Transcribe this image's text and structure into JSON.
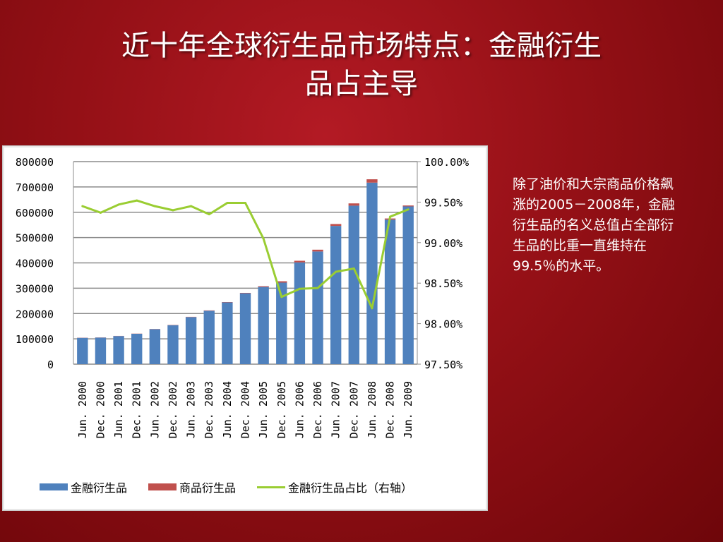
{
  "slide": {
    "title_line1": "近十年全球衍生品市场特点：金融衍生",
    "title_line2": "品占主导",
    "side_text": "除了油价和大宗商品价格飙涨的2005－2008年，金融衍生品的名义总值占全部衍生品的比重一直维持在99.5％的水平。"
  },
  "chart_data": {
    "type": "bar",
    "stacked": true,
    "categories": [
      "Jun. 2000",
      "Dec. 2000",
      "Jun. 2001",
      "Dec. 2001",
      "Jun. 2002",
      "Dec. 2002",
      "Jun. 2003",
      "Dec. 2003",
      "Jun. 2004",
      "Dec. 2004",
      "Jun. 2005",
      "Dec. 2005",
      "Jun. 2006",
      "Dec. 2006",
      "Jun. 2007",
      "Dec. 2007",
      "Jun. 2008",
      "Dec. 2008",
      "Jun. 2009"
    ],
    "series": [
      {
        "name": "金融衍生品",
        "type": "bar",
        "color": "#4f81bd",
        "axis": "left",
        "values": [
          104000,
          105000,
          111000,
          120000,
          138000,
          154000,
          186000,
          211000,
          244000,
          280000,
          305000,
          322000,
          402000,
          445000,
          546000,
          626000,
          717000,
          571000,
          623000
        ]
      },
      {
        "name": "商品衍生品",
        "type": "bar",
        "color": "#c0504d",
        "axis": "left",
        "values": [
          600,
          600,
          600,
          600,
          800,
          1000,
          1000,
          1400,
          1300,
          1600,
          2900,
          5400,
          6400,
          7100,
          7600,
          9000,
          13200,
          4400,
          3700
        ]
      },
      {
        "name": "金融衍生品占比（右轴）",
        "type": "line",
        "color": "#9acd32",
        "axis": "right",
        "values": [
          99.45,
          99.37,
          99.47,
          99.52,
          99.45,
          99.4,
          99.45,
          99.35,
          99.49,
          99.49,
          99.05,
          98.33,
          98.43,
          98.44,
          98.64,
          98.68,
          98.19,
          99.32,
          99.41
        ]
      }
    ],
    "left_axis": {
      "min": 0,
      "max": 800000,
      "ticks": [
        "0",
        "100000",
        "200000",
        "300000",
        "400000",
        "500000",
        "600000",
        "700000",
        "800000"
      ]
    },
    "right_axis": {
      "min": 97.5,
      "max": 100,
      "ticks": [
        "97.50%",
        "98.00%",
        "98.50%",
        "99.00%",
        "99.50%",
        "100.00%"
      ]
    },
    "grid": true,
    "legend_position": "bottom"
  }
}
